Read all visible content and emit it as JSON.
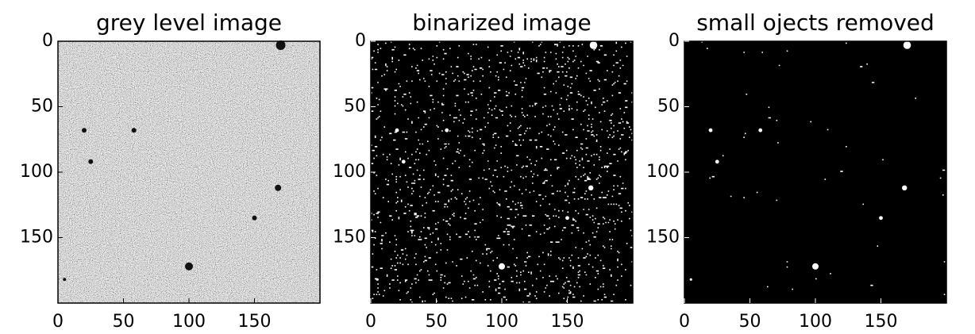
{
  "chart_data": [
    {
      "type": "image",
      "title": "grey level image",
      "xlim": [
        0,
        200
      ],
      "ylim": [
        200,
        0
      ],
      "xticks": [
        0,
        50,
        100,
        150
      ],
      "yticks": [
        0,
        50,
        100,
        150
      ]
    },
    {
      "type": "image",
      "title": "binarized image",
      "xlim": [
        0,
        200
      ],
      "ylim": [
        200,
        0
      ],
      "xticks": [
        0,
        50,
        100,
        150
      ],
      "yticks": [
        0,
        50,
        100,
        150
      ]
    },
    {
      "type": "image",
      "title": "small ojects removed",
      "xlim": [
        0,
        200
      ],
      "ylim": [
        200,
        0
      ],
      "xticks": [
        0,
        50,
        100,
        150
      ],
      "yticks": [
        0,
        50,
        100,
        150
      ]
    }
  ]
}
